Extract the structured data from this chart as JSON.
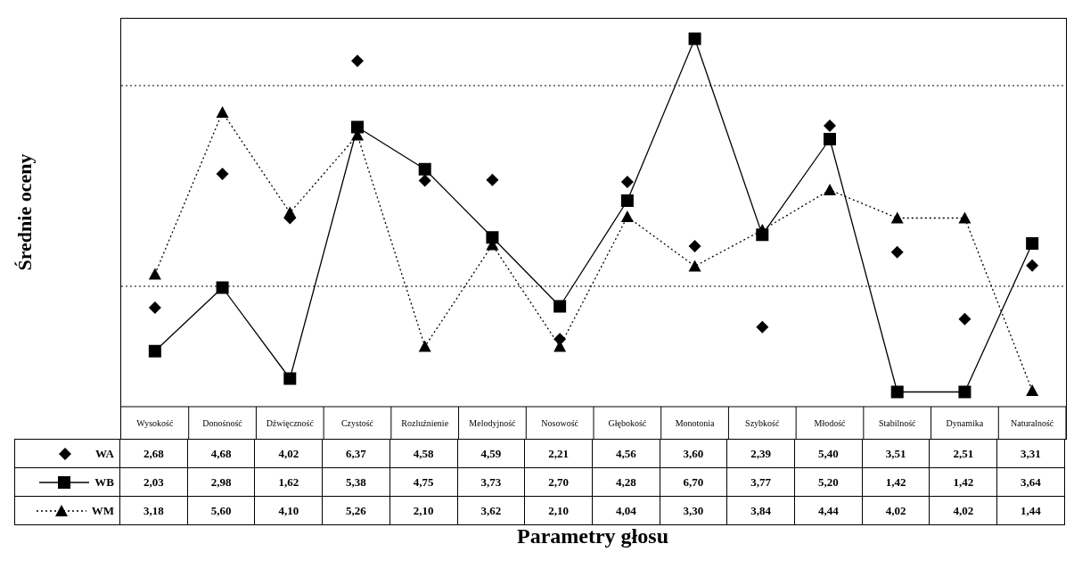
{
  "chart_data": {
    "type": "line",
    "ylabel": "Średnie oceny",
    "xlabel": "Parametry głosu",
    "categories": [
      "Wysokość",
      "Donośność",
      "Dźwięczność",
      "Czystość",
      "Rozluźnienie",
      "Melodyjność",
      "Nosowość",
      "Głębokość",
      "Monotonia",
      "Szybkość",
      "Młodość",
      "Stabilność",
      "Dynamika",
      "Naturalność"
    ],
    "series": [
      {
        "name": "WA",
        "type": "scatter",
        "color": "#000000",
        "marker": "diamond",
        "values": [
          2.68,
          4.68,
          4.02,
          6.37,
          4.58,
          4.59,
          2.21,
          4.56,
          3.6,
          2.39,
          5.4,
          3.51,
          2.51,
          3.31
        ],
        "value_labels": [
          "2,68",
          "4,68",
          "4,02",
          "6,37",
          "4,58",
          "4,59",
          "2,21",
          "4,56",
          "3,60",
          "2,39",
          "5,40",
          "3,51",
          "2,51",
          "3,31"
        ]
      },
      {
        "name": "WB",
        "type": "line",
        "color": "#000000",
        "marker": "square",
        "line_style": "solid",
        "values": [
          2.03,
          2.98,
          1.62,
          5.38,
          4.75,
          3.73,
          2.7,
          4.28,
          6.7,
          3.77,
          5.2,
          1.42,
          1.42,
          3.64
        ],
        "value_labels": [
          "2,03",
          "2,98",
          "1,62",
          "5,38",
          "4,75",
          "3,73",
          "2,70",
          "4,28",
          "6,70",
          "3,77",
          "5,20",
          "1,42",
          "1,42",
          "3,64"
        ]
      },
      {
        "name": "WM",
        "type": "line",
        "color": "#000000",
        "marker": "triangle",
        "line_style": "dotted",
        "values": [
          3.18,
          5.6,
          4.1,
          5.26,
          2.1,
          3.62,
          2.1,
          4.04,
          3.3,
          3.84,
          4.44,
          4.02,
          4.02,
          1.44
        ],
        "value_labels": [
          "3,18",
          "5,60",
          "4,10",
          "5,26",
          "2,10",
          "3,62",
          "2,10",
          "4,04",
          "3,30",
          "3,84",
          "4,44",
          "4,02",
          "4,02",
          "1,44"
        ]
      }
    ],
    "ylim": [
      1.2,
      7.0
    ],
    "tick_labels": "x",
    "legend": "bottom left",
    "ref_lines": [
      {
        "axis": "y",
        "value": 3,
        "line_style": "dotted",
        "color": "#000000"
      },
      {
        "axis": "y",
        "value": 6,
        "line_style": "dotted",
        "color": "#000000"
      }
    ]
  }
}
